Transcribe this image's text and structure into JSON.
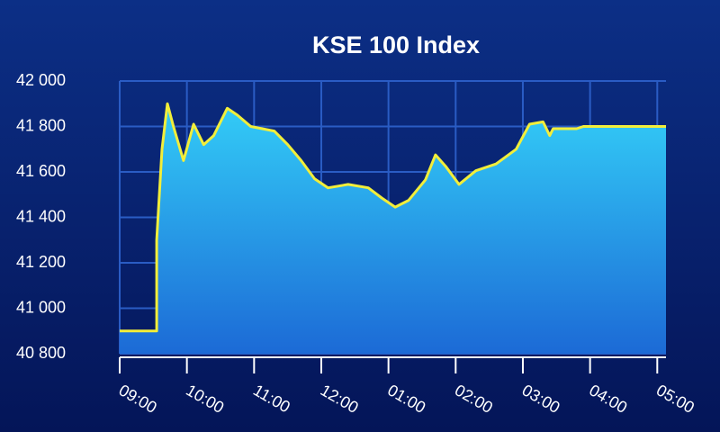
{
  "chart_data": {
    "type": "area",
    "title": "KSE 100 Index",
    "x": [
      9,
      9.55,
      9.55,
      9.63,
      9.71,
      9.8,
      9.95,
      10.1,
      10.25,
      10.4,
      10.6,
      10.75,
      10.95,
      11.3,
      11.5,
      11.7,
      11.9,
      12.1,
      12.4,
      12.7,
      12.9,
      13.1,
      13.3,
      13.55,
      13.7,
      13.85,
      14.05,
      14.3,
      14.6,
      14.9,
      15.1,
      15.3,
      15.4,
      15.45,
      15.8,
      15.9,
      17.13
    ],
    "series": [
      {
        "name": "KSE 100",
        "color": "#f2ee3a",
        "values": [
          40900,
          40900,
          41300,
          41700,
          41900,
          41800,
          41650,
          41810,
          41720,
          41760,
          41880,
          41850,
          41800,
          41780,
          41720,
          41650,
          41570,
          41530,
          41545,
          41530,
          41485,
          41445,
          41475,
          41565,
          41675,
          41625,
          41545,
          41605,
          41635,
          41700,
          41810,
          41820,
          41760,
          41790,
          41790,
          41800,
          41800
        ]
      }
    ],
    "xlim": [
      9,
      17.13
    ],
    "xticks": [
      {
        "value": 9,
        "label": "09:00"
      },
      {
        "value": 10,
        "label": "10:00"
      },
      {
        "value": 11,
        "label": "11:00"
      },
      {
        "value": 12,
        "label": "12:00"
      },
      {
        "value": 13,
        "label": "01:00"
      },
      {
        "value": 14,
        "label": "02:00"
      },
      {
        "value": 15,
        "label": "03:00"
      },
      {
        "value": 16,
        "label": "04:00"
      },
      {
        "value": 17,
        "label": "05:00"
      }
    ],
    "ylim": [
      40800,
      42000
    ],
    "yticks": [
      {
        "value": 40800,
        "label": "40 800"
      },
      {
        "value": 41000,
        "label": "41 000"
      },
      {
        "value": 41200,
        "label": "41 200"
      },
      {
        "value": 41400,
        "label": "41 400"
      },
      {
        "value": 41600,
        "label": "41 600"
      },
      {
        "value": 41800,
        "label": "41 800"
      },
      {
        "value": 42000,
        "label": "42 000"
      }
    ],
    "grid": true
  }
}
